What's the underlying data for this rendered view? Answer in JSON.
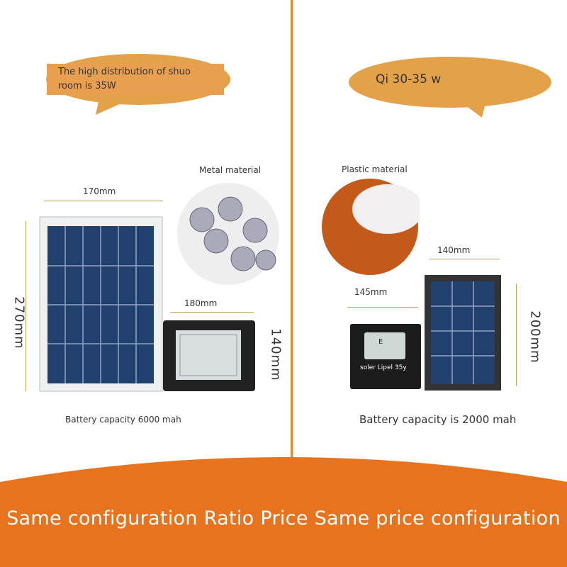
{
  "left": {
    "bubble": "The high distribution of shuo room is 35W",
    "material": "Metal material",
    "panel_width": "170mm",
    "panel_height": "270mm",
    "light_width": "180mm",
    "light_height": "140mm",
    "battery": "Battery capacity 6000 mah"
  },
  "right": {
    "bubble": "Qi 30-35 w",
    "material": "Plastic material",
    "panel_width": "140mm",
    "panel_height": "200mm",
    "light_width": "145mm",
    "light_label": "soler Lipel 35y",
    "light_mark": "E",
    "battery": "Battery capacity is 2000 mah"
  },
  "footer": "Same configuration Ratio Price Same price configuration",
  "colors": {
    "accent": "#e8731e",
    "bubble": "#e3a24a",
    "panel": "#22406e"
  }
}
